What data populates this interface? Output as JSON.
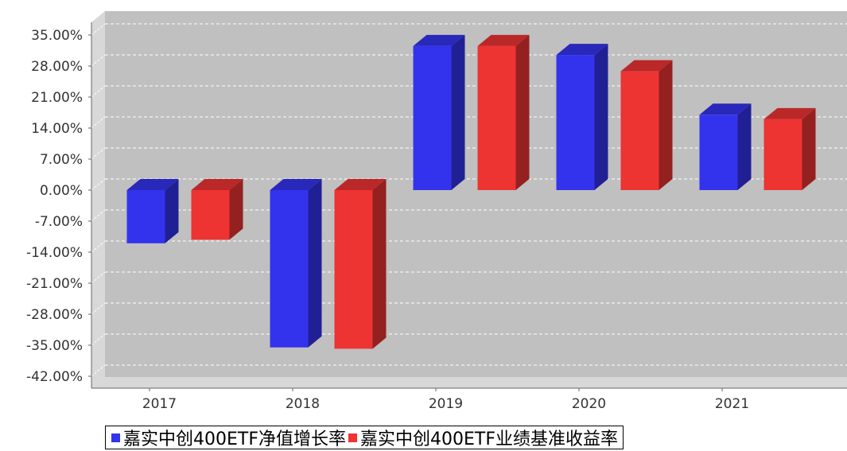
{
  "chart_data": {
    "type": "bar",
    "categories": [
      "2017",
      "2018",
      "2019",
      "2020",
      "2021"
    ],
    "series": [
      {
        "name": "嘉实中创400ETF净值增长率",
        "color": "#3333ee",
        "values": [
          -12.0,
          -35.5,
          32.5,
          30.5,
          17.0
        ]
      },
      {
        "name": "嘉实中创400ETF业绩基准收益率",
        "color": "#ee3333",
        "values": [
          -11.2,
          -35.8,
          32.5,
          26.8,
          16.0
        ]
      }
    ],
    "yticks": [
      35,
      28,
      21,
      14,
      7,
      0,
      -7,
      -14,
      -21,
      -28,
      -35,
      -42
    ],
    "ytick_labels": [
      "35.00%",
      "28.00%",
      "21.00%",
      "14.00%",
      "7.00%",
      "0.00%",
      "-7.00%",
      "-14.00%",
      "-21.00%",
      "-28.00%",
      "-35.00%",
      "-42.00%"
    ],
    "ylim": [
      -45,
      37
    ],
    "grid": true,
    "legend_position": "bottom",
    "title": "",
    "xlabel": "",
    "ylabel": ""
  }
}
